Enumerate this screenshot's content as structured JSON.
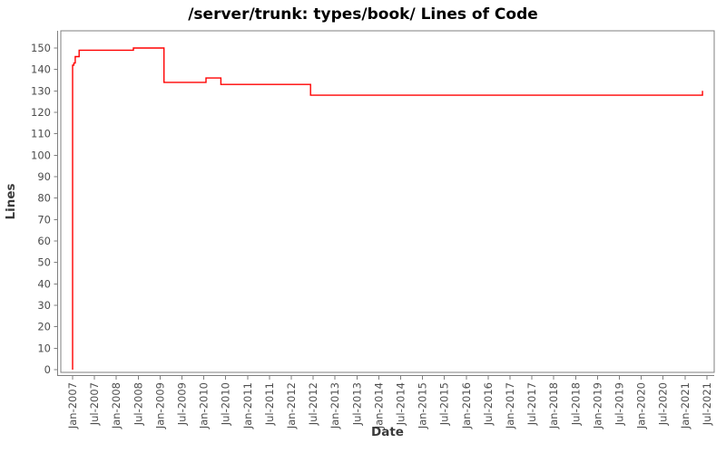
{
  "chart_data": {
    "type": "line",
    "title": "/server/trunk: types/book/ Lines of Code",
    "xlabel": "Date",
    "ylabel": "Lines",
    "grid": false,
    "legend": false,
    "title_color": "#000000",
    "axis_color": "#7f7f7f",
    "tick_label_color": "#4d4d4d",
    "axis_label_color": "#3a3a3a",
    "line_color": "#ff0000",
    "ylim": [
      0,
      157
    ],
    "y_ticks": [
      0,
      10,
      20,
      30,
      40,
      50,
      60,
      70,
      80,
      90,
      100,
      110,
      120,
      130,
      140,
      150
    ],
    "x_tick_labels": [
      "Jan-2007",
      "Jul-2007",
      "Jan-2008",
      "Jul-2008",
      "Jan-2009",
      "Jul-2009",
      "Jan-2010",
      "Jul-2010",
      "Jan-2011",
      "Jul-2011",
      "Jan-2012",
      "Jul-2012",
      "Jan-2013",
      "Jul-2013",
      "Jan-2014",
      "Jul-2014",
      "Jan-2015",
      "Jul-2015",
      "Jan-2016",
      "Jul-2016",
      "Jan-2017",
      "Jul-2017",
      "Jan-2018",
      "Jul-2018",
      "Jan-2019",
      "Jul-2019",
      "Jan-2020",
      "Jul-2020",
      "Jan-2021",
      "Jul-2021"
    ],
    "series": [
      {
        "name": "Lines of Code",
        "color": "#ff0000",
        "step": "after",
        "points": [
          [
            2007.0,
            0
          ],
          [
            2007.0,
            142
          ],
          [
            2007.03,
            143
          ],
          [
            2007.06,
            146
          ],
          [
            2007.15,
            149
          ],
          [
            2008.39,
            150
          ],
          [
            2009.09,
            134
          ],
          [
            2010.05,
            136
          ],
          [
            2010.39,
            133
          ],
          [
            2012.44,
            128
          ],
          [
            2021.4,
            130
          ]
        ]
      }
    ]
  }
}
